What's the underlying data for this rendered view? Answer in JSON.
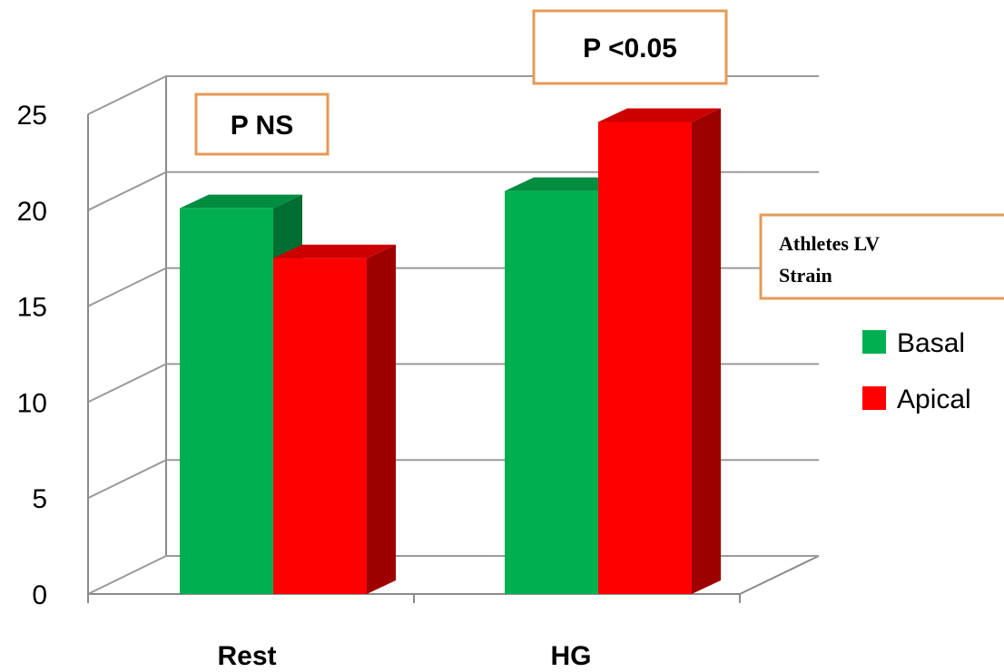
{
  "chart_data": {
    "type": "bar",
    "categories": [
      "Rest",
      "HG"
    ],
    "series": [
      {
        "name": "Basal",
        "values": [
          20.1,
          21.0
        ],
        "color": "#00b050"
      },
      {
        "name": "Apical",
        "values": [
          17.5,
          24.6
        ],
        "color": "#ff0000"
      }
    ],
    "ylim": [
      0,
      25
    ],
    "yticks": [
      "0",
      "5",
      "10",
      "15",
      "20",
      "25"
    ],
    "grid": true,
    "three_d": true,
    "legend": {
      "title": "Athletes LV Strain",
      "title_lines": [
        "Athletes LV",
        "Strain"
      ],
      "placement": "right"
    },
    "annotations": [
      {
        "text": "P NS",
        "category": "Rest"
      },
      {
        "text": "P <0.05",
        "category": "HG"
      }
    ],
    "annotation_border_color": "#e59a55"
  }
}
